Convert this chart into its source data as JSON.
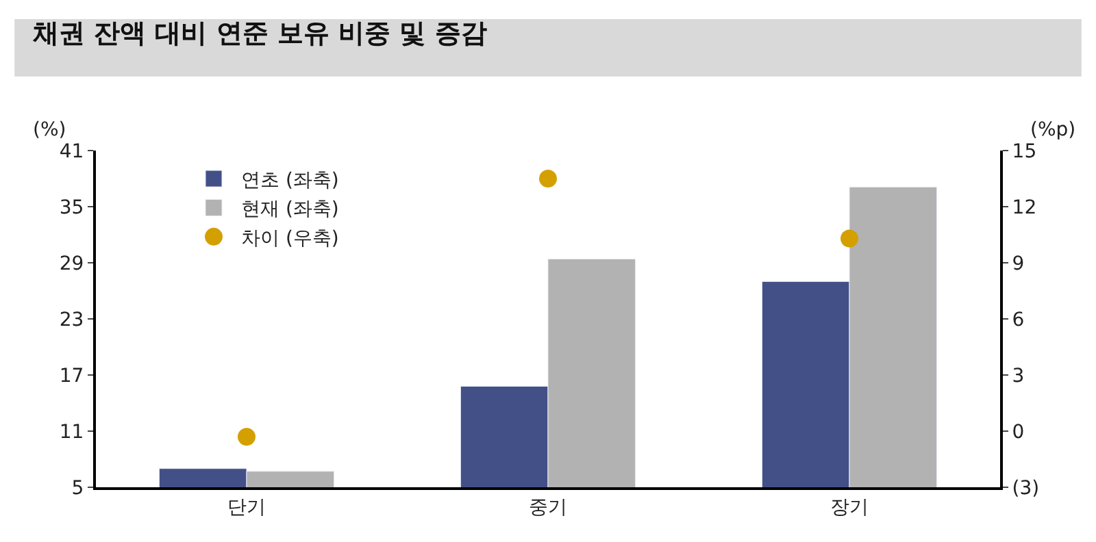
{
  "chart_data": {
    "type": "bar",
    "title": "채권 잔액 대비 연준 보유 비중 및 증감",
    "ylabel": "(%)",
    "y2label": "(%p)",
    "categories": [
      "단기",
      "중기",
      "장기"
    ],
    "series": [
      {
        "name": "연초 (좌축)",
        "color": "#435088",
        "values": [
          7.0,
          15.8,
          27.0
        ]
      },
      {
        "name": "현재 (좌축)",
        "color": "#b2b2b2",
        "values": [
          6.7,
          29.4,
          37.1
        ]
      },
      {
        "name": "차이 (우축)",
        "type": "scatter",
        "axis": "y2",
        "marker": "circle",
        "color": "#d4a000",
        "values": [
          -0.3,
          13.5,
          10.3
        ]
      }
    ],
    "ylim": [
      5,
      41
    ],
    "yticks": [
      5,
      11,
      17,
      23,
      29,
      35,
      41
    ],
    "y2lim": [
      -3,
      15
    ],
    "y2ticks": [
      {
        "value": -3,
        "label": "(3)"
      },
      0,
      3,
      6,
      9,
      12,
      15
    ],
    "legend": "top left"
  }
}
